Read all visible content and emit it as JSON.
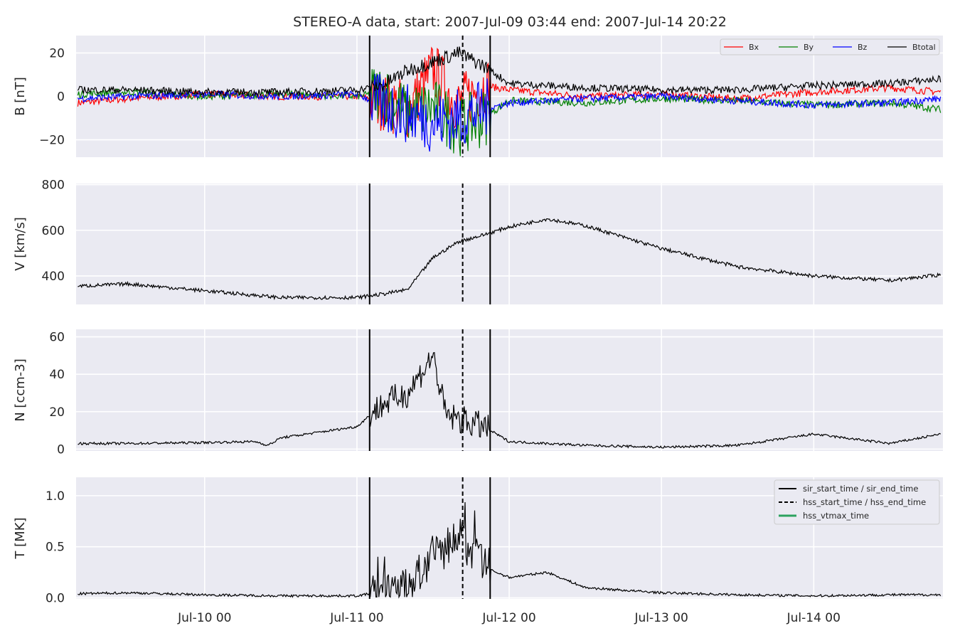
{
  "title": "STEREO-A data, start: 2007-Jul-09 03:44  end: 2007-Jul-14 20:22",
  "colors": {
    "panel_bg": "#eaeaf2",
    "grid": "#ffffff",
    "bx": "#ff0000",
    "by": "#008000",
    "bz": "#0000ff",
    "btotal": "#000000",
    "event_lines": "#000000",
    "hss_vtmax": "#2ca25f"
  },
  "x_ticks": [
    "Jul-10 00",
    "Jul-11 00",
    "Jul-12 00",
    "Jul-13 00",
    "Jul-14 00"
  ],
  "chart_data": [
    {
      "type": "line",
      "panel": "B",
      "ylabel": "B [nT]",
      "xlim": [
        "2007-07-09 03:44",
        "2007-07-14 20:22"
      ],
      "ylim": [
        -28,
        28
      ],
      "yticks": [
        -20,
        0,
        20
      ],
      "ytick_labels": [
        "−20",
        "0",
        "20"
      ],
      "legend": {
        "position": "top-right",
        "layout": "horizontal",
        "entries": [
          "Bx",
          "By",
          "Bz",
          "Btotal"
        ]
      },
      "x": [
        "2007-07-09 04:00",
        "2007-07-09 12:00",
        "2007-07-10 00:00",
        "2007-07-10 12:00",
        "2007-07-11 00:00",
        "2007-07-11 04:00",
        "2007-07-11 08:00",
        "2007-07-11 12:00",
        "2007-07-11 16:00",
        "2007-07-11 20:00",
        "2007-07-12 00:00",
        "2007-07-12 12:00",
        "2007-07-13 00:00",
        "2007-07-13 12:00",
        "2007-07-14 00:00",
        "2007-07-14 12:00",
        "2007-07-14 20:00"
      ],
      "series": [
        {
          "name": "Bx",
          "values": [
            -3,
            -1,
            1,
            0,
            0,
            -2,
            -6,
            12,
            -4,
            5,
            3,
            0,
            1,
            -1,
            2,
            4,
            2
          ]
        },
        {
          "name": "By",
          "values": [
            1,
            2,
            0,
            1,
            0,
            2,
            -8,
            -5,
            -14,
            -10,
            -2,
            -3,
            -1,
            -2,
            -4,
            -3,
            -6
          ]
        },
        {
          "name": "Bz",
          "values": [
            -1,
            0,
            1,
            0,
            1,
            -4,
            -8,
            -12,
            -10,
            -6,
            -3,
            -1,
            0,
            -2,
            -4,
            -3,
            -1
          ]
        },
        {
          "name": "Btotal",
          "values": [
            3,
            3,
            2,
            2,
            3,
            5,
            12,
            16,
            20,
            14,
            6,
            4,
            3,
            3,
            5,
            6,
            8
          ]
        }
      ],
      "event_lines": [
        {
          "time": "2007-07-11 02:00",
          "style": "solid"
        },
        {
          "time": "2007-07-11 16:40",
          "style": "dashed"
        },
        {
          "time": "2007-07-11 21:00",
          "style": "solid"
        }
      ]
    },
    {
      "type": "line",
      "panel": "V",
      "ylabel": "V [km/s]",
      "xlim": [
        "2007-07-09 03:44",
        "2007-07-14 20:22"
      ],
      "ylim": [
        275,
        805
      ],
      "yticks": [
        400,
        600,
        800
      ],
      "ytick_labels": [
        "400",
        "600",
        "800"
      ],
      "x": [
        "2007-07-09 04:00",
        "2007-07-09 12:00",
        "2007-07-10 00:00",
        "2007-07-10 12:00",
        "2007-07-11 00:00",
        "2007-07-11 04:00",
        "2007-07-11 08:00",
        "2007-07-11 12:00",
        "2007-07-11 16:00",
        "2007-07-11 20:00",
        "2007-07-12 00:00",
        "2007-07-12 06:00",
        "2007-07-12 12:00",
        "2007-07-13 00:00",
        "2007-07-13 12:00",
        "2007-07-14 00:00",
        "2007-07-14 12:00",
        "2007-07-14 20:00"
      ],
      "series": [
        {
          "name": "",
          "values": [
            355,
            365,
            335,
            305,
            305,
            320,
            340,
            480,
            550,
            580,
            615,
            650,
            620,
            520,
            440,
            400,
            380,
            405
          ]
        }
      ],
      "event_lines": [
        {
          "time": "2007-07-11 02:00",
          "style": "solid"
        },
        {
          "time": "2007-07-11 16:40",
          "style": "dashed"
        },
        {
          "time": "2007-07-11 21:00",
          "style": "solid"
        }
      ]
    },
    {
      "type": "line",
      "panel": "N",
      "ylabel": "N [ccm-3]",
      "xlim": [
        "2007-07-09 03:44",
        "2007-07-14 20:22"
      ],
      "ylim": [
        -1,
        64
      ],
      "yticks": [
        0,
        20,
        40,
        60
      ],
      "ytick_labels": [
        "0",
        "20",
        "40",
        "60"
      ],
      "x": [
        "2007-07-09 04:00",
        "2007-07-09 12:00",
        "2007-07-10 00:00",
        "2007-07-10 08:00",
        "2007-07-10 10:00",
        "2007-07-10 12:00",
        "2007-07-11 00:00",
        "2007-07-11 04:00",
        "2007-07-11 08:00",
        "2007-07-11 12:00",
        "2007-07-11 14:00",
        "2007-07-11 20:00",
        "2007-07-12 00:00",
        "2007-07-12 12:00",
        "2007-07-13 00:00",
        "2007-07-13 12:00",
        "2007-07-14 00:00",
        "2007-07-14 12:00",
        "2007-07-14 20:00"
      ],
      "series": [
        {
          "name": "",
          "values": [
            3,
            3,
            3.5,
            4,
            2,
            6,
            12,
            24,
            30,
            50,
            18,
            12,
            4,
            2,
            1,
            2,
            8,
            3,
            8
          ]
        }
      ],
      "event_lines": [
        {
          "time": "2007-07-11 02:00",
          "style": "solid"
        },
        {
          "time": "2007-07-11 16:40",
          "style": "dashed"
        },
        {
          "time": "2007-07-11 21:00",
          "style": "solid"
        }
      ]
    },
    {
      "type": "line",
      "panel": "T",
      "ylabel": "T [MK]",
      "xlim": [
        "2007-07-09 03:44",
        "2007-07-14 20:22"
      ],
      "ylim": [
        -0.01,
        1.18
      ],
      "yticks": [
        0,
        0.5,
        1
      ],
      "ytick_labels": [
        "0.0",
        "0.5",
        "1.0"
      ],
      "legend": {
        "position": "top-right",
        "entries": [
          {
            "label": "sir_start_time / sir_end_time",
            "style": "solid"
          },
          {
            "label": "hss_start_time / hss_end_time",
            "style": "dashed"
          },
          {
            "label": "hss_vtmax_time",
            "style": "green"
          }
        ]
      },
      "x": [
        "2007-07-09 04:00",
        "2007-07-09 12:00",
        "2007-07-10 00:00",
        "2007-07-10 12:00",
        "2007-07-11 00:00",
        "2007-07-11 04:00",
        "2007-07-11 08:00",
        "2007-07-11 12:00",
        "2007-07-11 16:00",
        "2007-07-11 20:00",
        "2007-07-12 00:00",
        "2007-07-12 06:00",
        "2007-07-12 12:00",
        "2007-07-13 00:00",
        "2007-07-13 12:00",
        "2007-07-14 00:00",
        "2007-07-14 12:00",
        "2007-07-14 20:00"
      ],
      "series": [
        {
          "name": "",
          "values": [
            0.04,
            0.05,
            0.03,
            0.02,
            0.02,
            0.06,
            0.1,
            0.4,
            0.6,
            0.3,
            0.2,
            0.25,
            0.1,
            0.05,
            0.03,
            0.02,
            0.03,
            0.03
          ]
        }
      ],
      "event_lines": [
        {
          "time": "2007-07-11 02:00",
          "style": "solid"
        },
        {
          "time": "2007-07-11 16:40",
          "style": "dashed"
        },
        {
          "time": "2007-07-11 21:00",
          "style": "solid"
        }
      ]
    }
  ]
}
